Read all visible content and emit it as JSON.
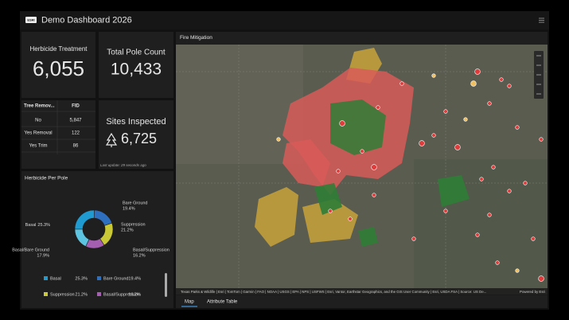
{
  "header": {
    "title": "Demo Dashboard 2026",
    "logo": "ESRI"
  },
  "indicators": [
    {
      "title": "Herbicide Treatment",
      "value": "6,055"
    },
    {
      "title": "Total Pole Count",
      "value": "10,433"
    }
  ],
  "table": {
    "columns": [
      "Tree Remov...",
      "FID"
    ],
    "rows": [
      [
        "No",
        "5,847"
      ],
      [
        "Yes Removal",
        "122"
      ],
      [
        "Yes Trim",
        "86"
      ]
    ]
  },
  "sites": {
    "title": "Sites Inspected",
    "value": "6,725",
    "note": "Last update: 29 seconds ago"
  },
  "chart_data": {
    "type": "pie",
    "title": "Herbicide Per Pole",
    "categories": [
      "Basal",
      "Bare Ground",
      "Suppression",
      "Basal/Suppression",
      "Basal/Bare Ground"
    ],
    "values": [
      25.3,
      19.4,
      21.2,
      16.2,
      17.9
    ],
    "value_labels": [
      "25.3%",
      "19.4%",
      "21.2%",
      "16.2%",
      "17.9%"
    ],
    "colors": [
      "#1f9bd1",
      "#2f6fc0",
      "#c9c937",
      "#a45fb0",
      "#5cc3e0"
    ],
    "legend_entries": 4
  },
  "map": {
    "title": "Fire Mitigation",
    "attribution": "Texas Parks & Wildlife | Esri | TomTom | Garmin | FAO | NOAA | USGS | EPA | NPS | USFWS | Esri, Vantor, Earthstar Geographics, and the GIS User Community | Esri, USDA FSA | Source: US De...",
    "powered": "Powered by Esri",
    "tabs": [
      "Map",
      "Attribute Table"
    ]
  }
}
